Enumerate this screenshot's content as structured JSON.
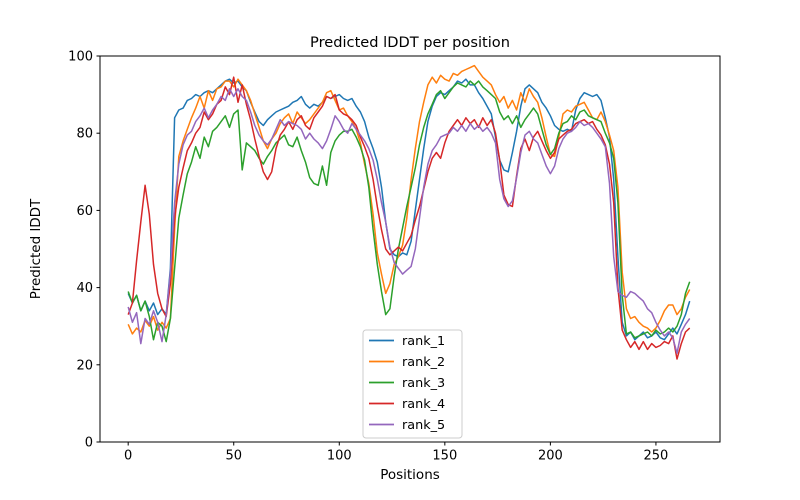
{
  "figure": {
    "background": "#ffffff",
    "spine_color": "#000000",
    "legend_border_color": "#cccccc"
  },
  "chart_data": {
    "type": "line",
    "title": "Predicted lDDT per position",
    "xlabel": "Positions",
    "ylabel": "Predicted lDDT",
    "xlim": [
      -13.35,
      280.35
    ],
    "ylim": [
      0,
      100
    ],
    "x_ticks": [
      0,
      50,
      100,
      150,
      200,
      250
    ],
    "y_ticks": [
      0,
      20,
      40,
      60,
      80,
      100
    ],
    "grid": false,
    "legend_position": "inside lower-center-left",
    "x_start": 0,
    "x_step": 2,
    "series": [
      {
        "name": "rank_1",
        "color": "#1f77b4",
        "values": [
          38.5,
          36,
          38,
          34,
          36.5,
          34,
          36,
          33,
          34.5,
          33,
          45,
          84,
          86,
          86.5,
          88.5,
          89,
          90,
          89.5,
          90.5,
          91,
          90.5,
          91.5,
          92.5,
          93.5,
          94,
          93,
          93.5,
          92,
          91,
          88,
          85.5,
          83,
          82,
          83.5,
          84.5,
          85.5,
          86,
          86.5,
          87,
          88,
          88.5,
          89.5,
          87.5,
          86.5,
          87.5,
          87,
          88,
          89.5,
          89,
          89.5,
          90,
          89,
          88.5,
          89,
          87,
          85.5,
          83,
          79,
          76,
          72.5,
          66,
          57,
          50,
          48.5,
          48,
          49,
          48.5,
          52,
          60,
          68,
          76,
          83,
          87,
          89.5,
          90.5,
          90,
          91,
          92,
          93.5,
          93,
          94,
          92.5,
          92.5,
          90.5,
          89,
          87,
          85,
          79,
          73,
          70.5,
          70,
          75,
          80.5,
          87,
          91.5,
          92.5,
          91.5,
          90.5,
          88,
          86.5,
          84.5,
          82,
          81,
          80.5,
          81,
          80.5,
          86,
          89,
          90.5,
          90,
          89.5,
          90,
          88.5,
          84,
          79,
          68,
          48,
          31,
          27.5,
          28.5,
          26.5,
          27.5,
          28.5,
          27,
          27.5,
          28.5,
          27,
          26.5,
          28,
          29.5,
          28,
          30.5,
          33,
          36.5
        ]
      },
      {
        "name": "rank_2",
        "color": "#ff7f0e",
        "values": [
          30.5,
          28,
          29.5,
          28.5,
          31.5,
          30,
          32.5,
          29,
          31,
          29.5,
          32,
          55,
          74,
          78,
          81,
          84,
          86.5,
          89.5,
          86.5,
          91,
          88.5,
          91.5,
          92,
          93.5,
          93.5,
          92,
          94,
          92.5,
          91,
          88.5,
          85,
          81.5,
          78,
          76,
          78.5,
          80,
          82.5,
          84,
          85,
          82.5,
          85.5,
          84,
          82.5,
          83.5,
          85,
          86.5,
          88,
          90.5,
          91,
          88.5,
          86,
          86.5,
          84.5,
          83,
          81,
          77.5,
          72,
          67,
          59,
          49,
          43.5,
          38.5,
          41,
          46,
          48,
          51,
          58,
          68,
          76,
          83,
          88,
          92.5,
          94.5,
          93,
          95,
          94,
          93.5,
          95.5,
          95,
          96,
          96.5,
          97,
          97.5,
          96,
          94.5,
          93.5,
          92.5,
          90,
          88,
          89.5,
          86.5,
          88.5,
          86,
          90.5,
          88,
          91.5,
          89.5,
          88,
          84,
          79,
          74.5,
          74,
          79,
          85,
          86,
          85.5,
          87,
          87.5,
          88,
          86,
          84,
          83.5,
          85.5,
          83,
          79.5,
          75.5,
          66,
          44,
          34.5,
          32,
          32.5,
          31,
          30,
          29.5,
          28.5,
          29.5,
          31.5,
          34,
          35.5,
          35.5,
          33,
          34.5,
          37.5,
          39.5
        ]
      },
      {
        "name": "rank_3",
        "color": "#2ca02c",
        "values": [
          39,
          36,
          38,
          34,
          36.5,
          32.5,
          26.5,
          31,
          30,
          26,
          32,
          45,
          58,
          64,
          69.5,
          72.5,
          76.5,
          73.5,
          79,
          76.5,
          80.5,
          81.5,
          83,
          84.5,
          81.5,
          85,
          86,
          70.5,
          77.5,
          76.5,
          75.5,
          73.5,
          72,
          74,
          75.5,
          77.5,
          78.5,
          79.5,
          77,
          76.5,
          79,
          75.5,
          72.5,
          68.5,
          67,
          66.5,
          71.5,
          66.5,
          75,
          78,
          79.5,
          80.5,
          80.5,
          81,
          79,
          76.5,
          73,
          66,
          55,
          46,
          39,
          33,
          34.5,
          43,
          50,
          55.5,
          61,
          66,
          71,
          77,
          81.5,
          85,
          87.5,
          90,
          91,
          89,
          90.5,
          92,
          93,
          92.5,
          92,
          93.5,
          92.5,
          93.5,
          92,
          91,
          90,
          89,
          85.5,
          83.5,
          84.5,
          82.5,
          84.5,
          81.5,
          83.5,
          85,
          86.5,
          85,
          81,
          77,
          74.5,
          76,
          80,
          82.5,
          83,
          84.5,
          83.5,
          85.5,
          86,
          84.5,
          84,
          83.5,
          83,
          80,
          77.5,
          73.5,
          62,
          38,
          28,
          28.5,
          27,
          27.5,
          28,
          28.5,
          27.5,
          29,
          28,
          28.5,
          29.5,
          28.5,
          30,
          33,
          38.5,
          41.5
        ]
      },
      {
        "name": "rank_4",
        "color": "#d62728",
        "values": [
          33,
          36,
          47,
          57,
          66.5,
          59,
          46,
          38.5,
          34.5,
          32.5,
          41,
          58,
          66,
          71,
          75.5,
          77.5,
          80,
          81.5,
          85.5,
          83.5,
          85,
          87.5,
          88.5,
          92,
          90,
          94.5,
          88,
          92.5,
          87.5,
          83.5,
          78.5,
          74,
          70,
          68,
          70,
          76,
          79.5,
          81,
          83,
          81,
          83.5,
          84.5,
          82,
          81,
          84,
          85.5,
          87,
          89.5,
          89,
          90,
          86,
          85,
          84.5,
          83.5,
          82,
          79,
          76.5,
          73.5,
          68,
          61,
          55,
          50,
          48.5,
          49.5,
          50.5,
          49.5,
          51.5,
          53.5,
          57.5,
          61,
          65.5,
          70,
          73.5,
          75,
          73.5,
          77.5,
          80.5,
          82,
          83.5,
          82,
          84,
          82.5,
          83.5,
          81.5,
          84,
          82,
          83.5,
          80,
          73,
          64,
          61.5,
          61,
          69,
          76,
          78.5,
          75.5,
          79,
          80.5,
          78,
          75.5,
          73.5,
          75,
          78.5,
          79.5,
          80.5,
          81,
          82.5,
          83,
          83.5,
          82.5,
          83,
          81,
          79.5,
          77,
          72,
          62,
          40,
          29,
          26.5,
          24.5,
          26,
          24,
          26,
          24,
          25.5,
          24.5,
          25,
          26,
          25.5,
          27.5,
          21.5,
          25.5,
          28.5,
          29.5
        ]
      },
      {
        "name": "rank_5",
        "color": "#9467bd",
        "values": [
          35,
          31,
          33.5,
          25.5,
          32,
          30.5,
          34,
          31,
          26,
          33,
          44,
          62,
          72,
          77,
          79.5,
          80.5,
          83,
          84.5,
          86.5,
          84,
          86,
          87.5,
          89.5,
          88.5,
          91.5,
          89.5,
          91.5,
          89.5,
          88.5,
          85.5,
          82,
          79.5,
          78,
          77,
          78.5,
          81,
          83.5,
          82,
          83,
          82.5,
          82,
          81,
          78.5,
          80,
          78.5,
          77.5,
          76,
          78,
          81,
          84.5,
          83,
          81,
          80,
          82.5,
          81,
          79.5,
          78,
          76,
          73,
          68,
          62,
          57,
          50.5,
          46.5,
          45,
          43.5,
          44.5,
          45.5,
          50,
          58,
          66,
          72,
          75.5,
          77,
          79,
          79.5,
          80,
          81.5,
          80.5,
          82,
          80.5,
          82.5,
          81,
          82,
          80.5,
          81.5,
          80,
          77.5,
          68,
          63,
          61,
          62.5,
          68.5,
          75,
          79.5,
          80.5,
          78.5,
          77.5,
          74.5,
          71.5,
          69.5,
          71.5,
          76,
          78.5,
          80,
          80.5,
          81.5,
          83,
          82,
          82.5,
          81.5,
          80,
          78.5,
          76.5,
          67,
          48,
          39,
          38,
          37.5,
          39,
          38.5,
          37.5,
          36.5,
          34.5,
          33.5,
          31,
          29,
          27.5,
          28.5,
          27,
          23,
          28.5,
          30.5,
          32
        ]
      }
    ]
  }
}
